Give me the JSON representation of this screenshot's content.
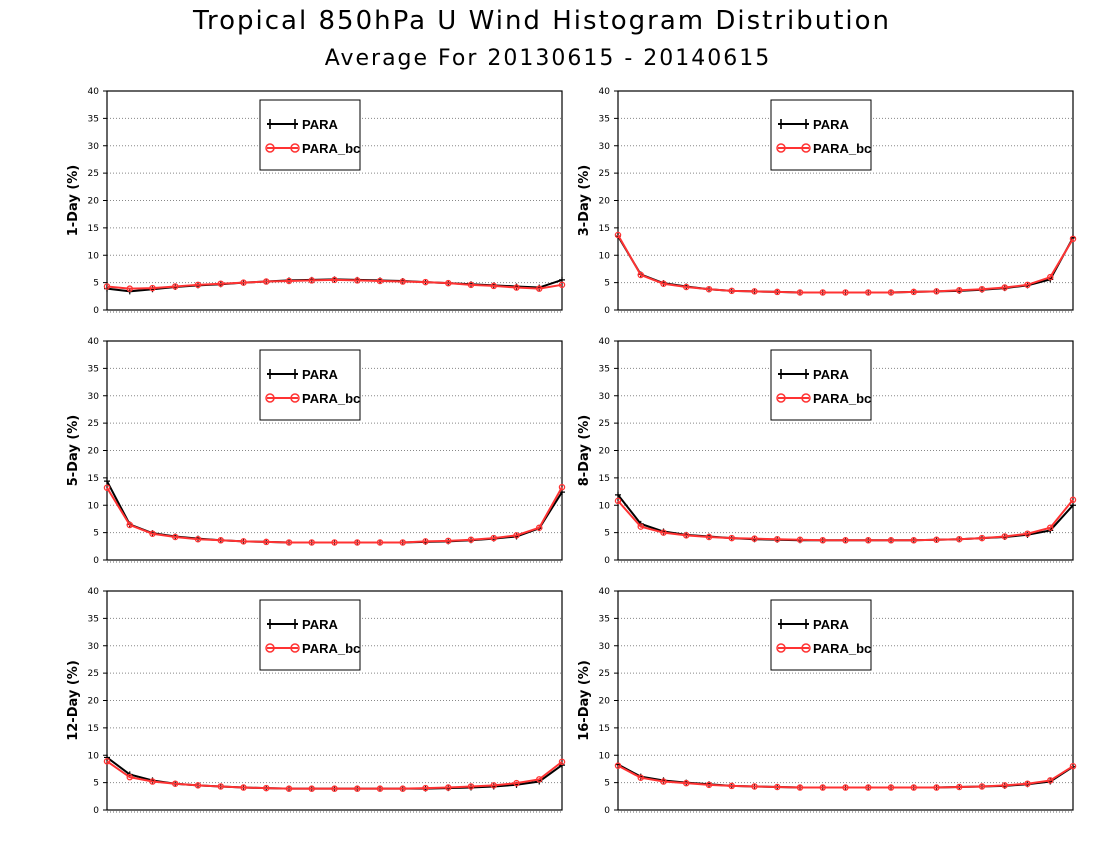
{
  "title": "Tropical 850hPa U Wind Histogram Distribution",
  "subtitle": "Average For 20130615 - 20140615",
  "colors": {
    "PARA": "#000000",
    "PARA_bc": "#ff3333"
  },
  "chart_data": [
    {
      "type": "line",
      "ylabel": "1-Day (%)",
      "ylim": [
        0,
        40
      ],
      "yticks": [
        0,
        5,
        10,
        15,
        20,
        25,
        30,
        35,
        40
      ],
      "grid": "horizontal dotted",
      "legend_position": "top-center",
      "x": [
        1,
        2,
        3,
        4,
        5,
        6,
        7,
        8,
        9,
        10,
        11,
        12,
        13,
        14,
        15,
        16,
        17,
        18,
        19,
        20,
        21
      ],
      "series": [
        {
          "name": "PARA",
          "marker": "plus",
          "values": [
            3.9,
            3.4,
            3.8,
            4.2,
            4.5,
            4.7,
            5.0,
            5.2,
            5.4,
            5.5,
            5.6,
            5.5,
            5.4,
            5.3,
            5.1,
            4.9,
            4.7,
            4.5,
            4.3,
            4.1,
            5.5
          ]
        },
        {
          "name": "PARA_bc",
          "marker": "circle",
          "values": [
            4.3,
            3.9,
            4.0,
            4.3,
            4.6,
            4.8,
            5.0,
            5.2,
            5.3,
            5.4,
            5.5,
            5.4,
            5.3,
            5.2,
            5.1,
            4.9,
            4.6,
            4.4,
            4.1,
            3.9,
            4.6
          ]
        }
      ]
    },
    {
      "type": "line",
      "ylabel": "3-Day (%)",
      "ylim": [
        0,
        40
      ],
      "yticks": [
        0,
        5,
        10,
        15,
        20,
        25,
        30,
        35,
        40
      ],
      "grid": "horizontal dotted",
      "legend_position": "top-center",
      "x": [
        1,
        2,
        3,
        4,
        5,
        6,
        7,
        8,
        9,
        10,
        11,
        12,
        13,
        14,
        15,
        16,
        17,
        18,
        19,
        20,
        21
      ],
      "series": [
        {
          "name": "PARA",
          "marker": "plus",
          "values": [
            13.5,
            6.5,
            4.9,
            4.3,
            3.8,
            3.5,
            3.4,
            3.3,
            3.2,
            3.2,
            3.2,
            3.2,
            3.2,
            3.3,
            3.4,
            3.5,
            3.7,
            4.0,
            4.5,
            5.6,
            13.2
          ]
        },
        {
          "name": "PARA_bc",
          "marker": "circle",
          "values": [
            13.7,
            6.4,
            4.8,
            4.2,
            3.8,
            3.5,
            3.4,
            3.3,
            3.2,
            3.2,
            3.2,
            3.2,
            3.2,
            3.3,
            3.4,
            3.6,
            3.8,
            4.1,
            4.6,
            6.0,
            13.0
          ]
        }
      ]
    },
    {
      "type": "line",
      "ylabel": "5-Day (%)",
      "ylim": [
        0,
        40
      ],
      "yticks": [
        0,
        5,
        10,
        15,
        20,
        25,
        30,
        35,
        40
      ],
      "grid": "horizontal dotted",
      "legend_position": "top-center",
      "x": [
        1,
        2,
        3,
        4,
        5,
        6,
        7,
        8,
        9,
        10,
        11,
        12,
        13,
        14,
        15,
        16,
        17,
        18,
        19,
        20,
        21
      ],
      "series": [
        {
          "name": "PARA",
          "marker": "plus",
          "values": [
            14.4,
            6.5,
            4.9,
            4.3,
            3.9,
            3.6,
            3.4,
            3.3,
            3.2,
            3.2,
            3.2,
            3.2,
            3.2,
            3.2,
            3.3,
            3.4,
            3.6,
            3.9,
            4.3,
            5.8,
            12.4
          ]
        },
        {
          "name": "PARA_bc",
          "marker": "circle",
          "values": [
            13.2,
            6.4,
            4.8,
            4.2,
            3.8,
            3.6,
            3.4,
            3.3,
            3.2,
            3.2,
            3.2,
            3.2,
            3.2,
            3.2,
            3.4,
            3.5,
            3.7,
            4.0,
            4.5,
            5.9,
            13.3
          ]
        }
      ]
    },
    {
      "type": "line",
      "ylabel": "8-Day (%)",
      "ylim": [
        0,
        40
      ],
      "yticks": [
        0,
        5,
        10,
        15,
        20,
        25,
        30,
        35,
        40
      ],
      "grid": "horizontal dotted",
      "legend_position": "top-center",
      "x": [
        1,
        2,
        3,
        4,
        5,
        6,
        7,
        8,
        9,
        10,
        11,
        12,
        13,
        14,
        15,
        16,
        17,
        18,
        19,
        20,
        21
      ],
      "series": [
        {
          "name": "PARA",
          "marker": "plus",
          "values": [
            11.9,
            6.6,
            5.2,
            4.6,
            4.3,
            4.0,
            3.8,
            3.7,
            3.6,
            3.6,
            3.6,
            3.6,
            3.6,
            3.6,
            3.7,
            3.8,
            4.0,
            4.2,
            4.6,
            5.4,
            10.0
          ]
        },
        {
          "name": "PARA_bc",
          "marker": "circle",
          "values": [
            10.8,
            6.1,
            5.0,
            4.5,
            4.2,
            4.0,
            3.9,
            3.8,
            3.7,
            3.6,
            3.6,
            3.6,
            3.6,
            3.6,
            3.7,
            3.8,
            4.0,
            4.3,
            4.8,
            5.9,
            11.0
          ]
        }
      ]
    },
    {
      "type": "line",
      "ylabel": "12-Day (%)",
      "ylim": [
        0,
        40
      ],
      "yticks": [
        0,
        5,
        10,
        15,
        20,
        25,
        30,
        35,
        40
      ],
      "grid": "horizontal dotted",
      "legend_position": "top-center",
      "x": [
        1,
        2,
        3,
        4,
        5,
        6,
        7,
        8,
        9,
        10,
        11,
        12,
        13,
        14,
        15,
        16,
        17,
        18,
        19,
        20,
        21
      ],
      "series": [
        {
          "name": "PARA",
          "marker": "plus",
          "values": [
            9.6,
            6.5,
            5.4,
            4.8,
            4.5,
            4.3,
            4.1,
            4.0,
            3.9,
            3.9,
            3.9,
            3.9,
            3.9,
            3.9,
            3.9,
            4.0,
            4.1,
            4.3,
            4.6,
            5.2,
            8.2
          ]
        },
        {
          "name": "PARA_bc",
          "marker": "circle",
          "values": [
            8.9,
            6.0,
            5.2,
            4.8,
            4.5,
            4.3,
            4.1,
            4.0,
            3.9,
            3.9,
            3.9,
            3.9,
            3.9,
            3.9,
            4.0,
            4.1,
            4.3,
            4.5,
            4.9,
            5.6,
            8.8
          ]
        }
      ]
    },
    {
      "type": "line",
      "ylabel": "16-Day (%)",
      "ylim": [
        0,
        40
      ],
      "yticks": [
        0,
        5,
        10,
        15,
        20,
        25,
        30,
        35,
        40
      ],
      "grid": "horizontal dotted",
      "legend_position": "top-center",
      "x": [
        1,
        2,
        3,
        4,
        5,
        6,
        7,
        8,
        9,
        10,
        11,
        12,
        13,
        14,
        15,
        16,
        17,
        18,
        19,
        20,
        21
      ],
      "series": [
        {
          "name": "PARA",
          "marker": "plus",
          "values": [
            8.3,
            6.1,
            5.4,
            5.0,
            4.7,
            4.4,
            4.3,
            4.2,
            4.1,
            4.1,
            4.1,
            4.1,
            4.1,
            4.1,
            4.1,
            4.2,
            4.3,
            4.4,
            4.7,
            5.2,
            7.9
          ]
        },
        {
          "name": "PARA_bc",
          "marker": "circle",
          "values": [
            8.1,
            5.9,
            5.2,
            4.9,
            4.6,
            4.4,
            4.3,
            4.2,
            4.1,
            4.1,
            4.1,
            4.1,
            4.1,
            4.1,
            4.1,
            4.2,
            4.3,
            4.5,
            4.8,
            5.4,
            8.0
          ]
        }
      ]
    }
  ]
}
